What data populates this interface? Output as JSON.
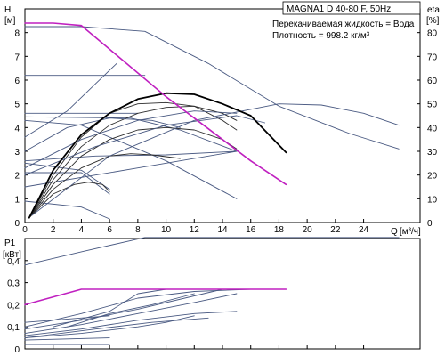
{
  "chart_data": [
    {
      "type": "line",
      "title": "MAGNA1 D 40-80 F, 50Hz",
      "notes": [
        "Перекачиваемая жидкость = Вода",
        "Плотность = 998.2 кг/м³"
      ],
      "ylabel": "H",
      "yunit": "[м]",
      "y2label": "eta",
      "y2unit": "[%]",
      "xlabel": "Q",
      "xunit": "[м³/ч]",
      "xlim": [
        0,
        28
      ],
      "ylim": [
        0,
        9
      ],
      "y2lim": [
        0,
        90
      ],
      "x_ticks": [
        "0",
        "2",
        "4",
        "6",
        "8",
        "10",
        "12",
        "14",
        "16",
        "18",
        "20",
        "22",
        "24"
      ],
      "y_ticks": [
        "0",
        "1",
        "2",
        "3",
        "4",
        "5",
        "6",
        "7",
        "8"
      ],
      "y2_ticks": [
        "0",
        "10",
        "20",
        "30",
        "40",
        "50",
        "60",
        "70",
        "80"
      ],
      "grid": false,
      "series": [
        {
          "role": "head",
          "color": "#4a5a82",
          "points": [
            [
              0,
              8.25
            ],
            [
              4,
              8.25
            ],
            [
              8.5,
              8.05
            ],
            [
              13,
              6.7
            ],
            [
              18,
              4.9
            ],
            [
              23,
              3.75
            ],
            [
              26.5,
              3.1
            ]
          ]
        },
        {
          "role": "head",
          "color": "#4a5a82",
          "points": [
            [
              0,
              6.2
            ],
            [
              8.5,
              6.2
            ]
          ]
        },
        {
          "role": "head",
          "color": "#4a5a82",
          "points": [
            [
              0,
              4.6
            ],
            [
              8,
              4.6
            ]
          ]
        },
        {
          "role": "head",
          "color": "#4a5a82",
          "points": [
            [
              0,
              4.45
            ],
            [
              7.5,
              4.4
            ],
            [
              11,
              3.9
            ],
            [
              15,
              3.0
            ]
          ]
        },
        {
          "role": "head",
          "color": "#4a5a82",
          "points": [
            [
              0,
              4.3
            ],
            [
              4,
              4.1
            ],
            [
              10,
              2.6
            ],
            [
              15,
              1.0
            ]
          ]
        },
        {
          "role": "head",
          "color": "#4a5a82",
          "points": [
            [
              0,
              3.6
            ],
            [
              3,
              4.7
            ],
            [
              6.5,
              6.7
            ]
          ]
        },
        {
          "role": "head",
          "color": "#4a5a82",
          "points": [
            [
              0,
              2.6
            ],
            [
              5,
              2.8
            ],
            [
              10,
              2.85
            ],
            [
              15,
              3.0
            ]
          ]
        },
        {
          "role": "head",
          "color": "#4a5a82",
          "points": [
            [
              0,
              1.5
            ],
            [
              8,
              2.3
            ],
            [
              15,
              3.0
            ]
          ]
        },
        {
          "role": "head",
          "color": "#4a5a82",
          "points": [
            [
              0,
              0.9
            ],
            [
              4,
              0.65
            ],
            [
              6,
              0.15
            ]
          ]
        },
        {
          "role": "head",
          "color": "#4a5a82",
          "points": [
            [
              0,
              2.1
            ],
            [
              4,
              2.1
            ],
            [
              6,
              1.2
            ]
          ]
        },
        {
          "role": "head",
          "color": "#4a5a82",
          "points": [
            [
              0,
              2.5
            ],
            [
              4,
              2.2
            ],
            [
              6,
              1.4
            ]
          ]
        },
        {
          "role": "eta",
          "color": "#2b2b2b",
          "points": [
            [
              0.3,
              0.2
            ],
            [
              2,
              2.0
            ],
            [
              4,
              3.6
            ],
            [
              6,
              4.6
            ],
            [
              8,
              5.0
            ],
            [
              10,
              5.05
            ],
            [
              12,
              4.9
            ],
            [
              14,
              4.3
            ],
            [
              15,
              3.9
            ]
          ]
        },
        {
          "role": "eta",
          "color": "#2b2b2b",
          "points": [
            [
              0.3,
              0.2
            ],
            [
              2,
              1.8
            ],
            [
              4,
              3.2
            ],
            [
              6,
              4.1
            ],
            [
              8,
              4.6
            ],
            [
              10,
              4.85
            ],
            [
              12,
              4.9
            ],
            [
              14,
              4.6
            ],
            [
              15,
              4.3
            ]
          ]
        },
        {
          "role": "eta",
          "color": "#2b2b2b",
          "points": [
            [
              0.3,
              0.2
            ],
            [
              2,
              1.6
            ],
            [
              4,
              2.8
            ],
            [
              6,
              3.5
            ],
            [
              8,
              3.9
            ],
            [
              10,
              4.0
            ],
            [
              12,
              3.9
            ],
            [
              14,
              3.5
            ],
            [
              15,
              3.1
            ]
          ]
        },
        {
          "role": "eta",
          "color": "#2b2b2b",
          "points": [
            [
              0.3,
              0.2
            ],
            [
              2,
              1.4
            ],
            [
              4,
              2.3
            ],
            [
              6,
              2.8
            ],
            [
              7.5,
              2.9
            ],
            [
              9,
              2.85
            ],
            [
              11,
              2.7
            ]
          ]
        },
        {
          "role": "eta",
          "color": "#2b2b2b",
          "points": [
            [
              0.3,
              0.2
            ],
            [
              2,
              1.2
            ],
            [
              3.5,
              1.6
            ],
            [
              4.5,
              1.7
            ],
            [
              5.5,
              1.6
            ],
            [
              6,
              1.3
            ]
          ]
        },
        {
          "role": "eta",
          "color": "#4a5a82",
          "points": [
            [
              0,
              2.0
            ],
            [
              5,
              3.2
            ],
            [
              10,
              4.1
            ],
            [
              15,
              4.5
            ],
            [
              17,
              4.2
            ]
          ]
        },
        {
          "role": "eta",
          "color": "#4a5a82",
          "points": [
            [
              0,
              2.3
            ],
            [
              4,
              3.5
            ],
            [
              8,
              4.3
            ],
            [
              12,
              4.7
            ],
            [
              15,
              4.6
            ]
          ]
        },
        {
          "role": "eta",
          "color": "#4a5a82",
          "points": [
            [
              0,
              3.0
            ],
            [
              3,
              4.0
            ],
            [
              6,
              4.4
            ],
            [
              9,
              4.3
            ],
            [
              11,
              4.0
            ]
          ]
        },
        {
          "role": "eta",
          "color": "#4a5a82",
          "points": [
            [
              0.5,
              0.3
            ],
            [
              6,
              2.8
            ],
            [
              12,
              4.3
            ],
            [
              18,
              5.0
            ],
            [
              21,
              4.95
            ],
            [
              24,
              4.6
            ],
            [
              26.5,
              4.1
            ]
          ]
        },
        {
          "role": "eta_max",
          "color": "#000000",
          "width": 1.8,
          "points": [
            [
              0.3,
              0.2
            ],
            [
              2,
              2.2
            ],
            [
              4,
              3.7
            ],
            [
              6,
              4.6
            ],
            [
              8,
              5.2
            ],
            [
              10,
              5.45
            ],
            [
              12,
              5.4
            ],
            [
              14,
              5.0
            ],
            [
              16,
              4.5
            ],
            [
              18.5,
              2.95
            ]
          ]
        },
        {
          "role": "max_curve",
          "color": "#c020c0",
          "width": 1.6,
          "points": [
            [
              0,
              8.4
            ],
            [
              2,
              8.4
            ],
            [
              4,
              8.3
            ],
            [
              6,
              7.3
            ],
            [
              8,
              6.3
            ],
            [
              10,
              5.3
            ],
            [
              12,
              4.4
            ],
            [
              14,
              3.5
            ],
            [
              16,
              2.6
            ],
            [
              18.5,
              1.6
            ]
          ]
        }
      ]
    },
    {
      "type": "line",
      "ylabel": "P1",
      "yunit": "[кВт]",
      "xlim": [
        0,
        28
      ],
      "ylim": [
        0,
        0.5
      ],
      "y_ticks": [
        "0",
        "0,1",
        "0,2",
        "0,3",
        "0,4"
      ],
      "grid": false,
      "series": [
        {
          "role": "power",
          "color": "#4a5a82",
          "points": [
            [
              0,
              0.38
            ],
            [
              4,
              0.44
            ],
            [
              8.5,
              0.505
            ],
            [
              26.5,
              0.505
            ]
          ]
        },
        {
          "role": "power",
          "color": "#4a5a82",
          "points": [
            [
              0,
              0.1
            ],
            [
              4,
              0.16
            ],
            [
              8,
              0.23
            ],
            [
              12,
              0.26
            ],
            [
              16,
              0.27
            ],
            [
              18.5,
              0.27
            ]
          ]
        },
        {
          "role": "power",
          "color": "#4a5a82",
          "points": [
            [
              0,
              0.09
            ],
            [
              4,
              0.13
            ],
            [
              8,
              0.18
            ],
            [
              12,
              0.24
            ],
            [
              14,
              0.27
            ],
            [
              18.5,
              0.27
            ]
          ]
        },
        {
          "role": "power",
          "color": "#4a5a82",
          "points": [
            [
              0,
              0.07
            ],
            [
              4,
              0.11
            ],
            [
              8,
              0.16
            ],
            [
              12,
              0.21
            ],
            [
              15,
              0.25
            ]
          ]
        },
        {
          "role": "power",
          "color": "#4a5a82",
          "points": [
            [
              0,
              0.06
            ],
            [
              4,
              0.09
            ],
            [
              8,
              0.13
            ],
            [
              12,
              0.16
            ],
            [
              15,
              0.17
            ]
          ]
        },
        {
          "role": "power",
          "color": "#4a5a82",
          "points": [
            [
              0,
              0.05
            ],
            [
              4,
              0.07
            ],
            [
              8,
              0.1
            ],
            [
              10,
              0.12
            ],
            [
              12,
              0.15
            ]
          ]
        },
        {
          "role": "power",
          "color": "#4a5a82",
          "points": [
            [
              0,
              0.04
            ],
            [
              6,
              0.05
            ]
          ]
        },
        {
          "role": "power",
          "color": "#4a5a82",
          "points": [
            [
              0,
              0.02
            ],
            [
              6,
              0.02
            ]
          ]
        },
        {
          "role": "power",
          "color": "#4a5a82",
          "points": [
            [
              0,
              0.12
            ],
            [
              6,
              0.15
            ]
          ]
        },
        {
          "role": "power",
          "color": "#4a5a82",
          "points": [
            [
              2,
              0.1
            ],
            [
              6,
              0.17
            ],
            [
              8,
              0.25
            ],
            [
              10,
              0.27
            ]
          ]
        },
        {
          "role": "power",
          "color": "#4a5a82",
          "points": [
            [
              3,
              0.1
            ],
            [
              6,
              0.16
            ],
            [
              9,
              0.2
            ],
            [
              12,
              0.25
            ]
          ]
        },
        {
          "role": "power",
          "color": "#4a5a82",
          "points": [
            [
              0,
              0.05
            ],
            [
              5,
              0.09
            ],
            [
              9,
              0.12
            ],
            [
              13,
              0.14
            ]
          ]
        },
        {
          "role": "power_max",
          "color": "#c020c0",
          "width": 1.6,
          "points": [
            [
              0,
              0.2
            ],
            [
              4,
              0.27
            ],
            [
              18.5,
              0.27
            ]
          ]
        }
      ]
    }
  ]
}
